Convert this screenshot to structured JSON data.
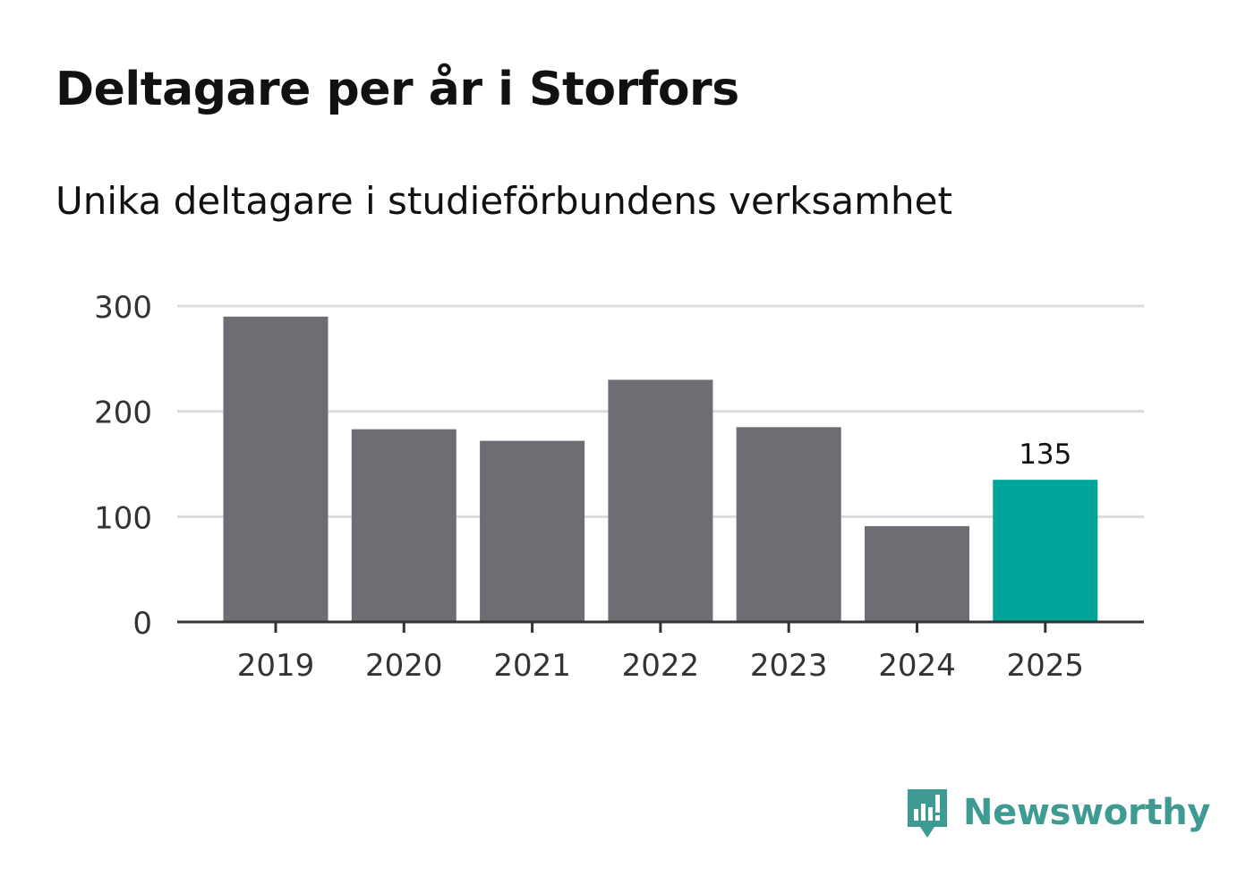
{
  "header": {
    "title": "Deltagare per år i Storfors",
    "subtitle": "Unika deltagare i studieförbundens verksamhet"
  },
  "brand": {
    "name": "Newsworthy",
    "color": "#3e9b93",
    "icon": "newsworthy-logo-icon"
  },
  "chart_data": {
    "type": "bar",
    "categories": [
      "2019",
      "2020",
      "2021",
      "2022",
      "2023",
      "2024",
      "2025"
    ],
    "values": [
      290,
      183,
      172,
      230,
      185,
      91,
      135
    ],
    "ylim": [
      0,
      300
    ],
    "yticks": [
      "0",
      "100",
      "200",
      "300"
    ],
    "grid": true,
    "bar_color": "#6e6d73",
    "highlight_color": "#00a59a",
    "highlight_index": 6,
    "data_labels": [
      {
        "index": 6,
        "text": "135"
      }
    ],
    "title": "",
    "xlabel": "",
    "ylabel": ""
  }
}
